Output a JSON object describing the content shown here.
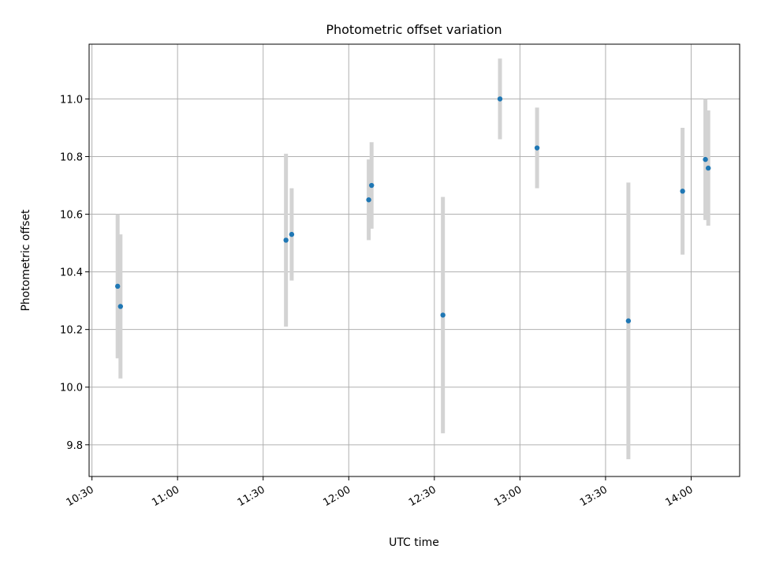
{
  "chart_data": {
    "type": "scatter",
    "title": "Photometric offset variation",
    "xlabel": "UTC time",
    "ylabel": "Photometric offset",
    "x_ticks": [
      "10:30",
      "11:00",
      "11:30",
      "12:00",
      "12:30",
      "13:00",
      "13:30",
      "14:00"
    ],
    "y_ticks": [
      "9.8",
      "10.0",
      "10.2",
      "10.4",
      "10.6",
      "10.8",
      "11.0"
    ],
    "xlim": [
      "10:29",
      "14:17"
    ],
    "ylim": [
      9.69,
      11.19
    ],
    "grid": true,
    "error_bars": true,
    "colors": {
      "points": "#1f77b4",
      "error_bars": "#d3d3d3",
      "grid": "#b0b0b0",
      "axes": "#000000"
    },
    "series": [
      {
        "points": [
          {
            "x": "10:39",
            "y": 10.35,
            "err": 0.25
          },
          {
            "x": "10:40",
            "y": 10.28,
            "err": 0.25
          },
          {
            "x": "11:38",
            "y": 10.51,
            "err": 0.3
          },
          {
            "x": "11:40",
            "y": 10.53,
            "err": 0.16
          },
          {
            "x": "12:07",
            "y": 10.65,
            "err": 0.14
          },
          {
            "x": "12:08",
            "y": 10.7,
            "err": 0.15
          },
          {
            "x": "12:33",
            "y": 10.25,
            "err": 0.41
          },
          {
            "x": "12:53",
            "y": 11.0,
            "err": 0.14
          },
          {
            "x": "13:06",
            "y": 10.83,
            "err": 0.14
          },
          {
            "x": "13:38",
            "y": 10.23,
            "err": 0.48
          },
          {
            "x": "13:57",
            "y": 10.68,
            "err": 0.22
          },
          {
            "x": "14:05",
            "y": 10.79,
            "err": 0.21
          },
          {
            "x": "14:06",
            "y": 10.76,
            "err": 0.2
          }
        ]
      }
    ]
  }
}
